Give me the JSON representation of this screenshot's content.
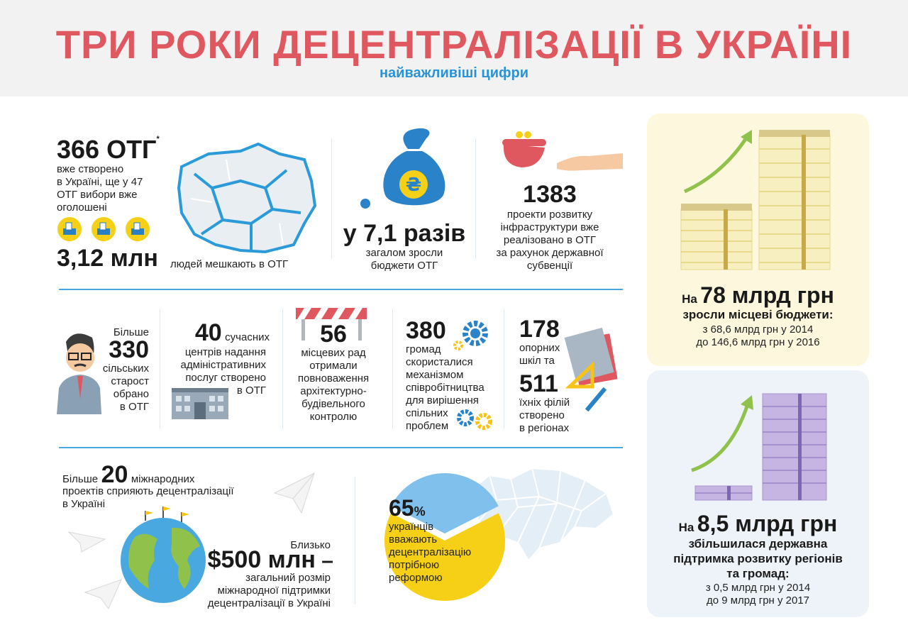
{
  "header": {
    "title": "ТРИ РОКИ ДЕЦЕНТРАЛІЗАЦІЇ В УКРАЇНІ",
    "subtitle": "найважливіші цифри"
  },
  "otg": {
    "number": "366 ОТГ",
    "star": "*",
    "text": [
      "вже створено",
      "в Україні, ще у 47",
      "ОТГ вибори вже",
      "оголошені"
    ],
    "people_number": "3,12 млн",
    "people_text": "людей мешкають в ОТГ"
  },
  "budgets": {
    "number": "у 7,1 разів",
    "text": [
      "загалом зросли",
      "бюджети ОТГ"
    ],
    "currency_symbol": "₴"
  },
  "projects": {
    "number": "1383",
    "text": [
      "проекти розвитку",
      "інфраструктури вже",
      "реалізовано в ОТГ",
      "за рахунок державної",
      "субвенції"
    ]
  },
  "starosty": {
    "prefix": "Більше",
    "number": "330",
    "text": [
      "сільських",
      "старост",
      "обрано",
      "в ОТГ"
    ]
  },
  "centers": {
    "number": "40",
    "first_word": "сучасних",
    "text": [
      "центрів надання",
      "адміністративних",
      "послуг створено",
      "в ОТГ"
    ]
  },
  "councils": {
    "number": "56",
    "text": [
      "місцевих рад",
      "отримали",
      "повноваження",
      "архітектурно-",
      "будівельного",
      "контролю"
    ]
  },
  "cooperation": {
    "number": "380",
    "text": [
      "громад",
      "скористалися",
      "механізмом",
      "співробітництва",
      "для вирішення",
      "спільних",
      "проблем"
    ]
  },
  "schools": {
    "number1": "178",
    "text1": [
      "опорних",
      "шкіл та"
    ],
    "number2": "511",
    "text2": [
      "їхніх філій",
      "створено",
      "в регіонах"
    ]
  },
  "international": {
    "prefix": "Більше",
    "number": "20",
    "suffix": "міжнародних",
    "text": [
      "проектів сприяють децентралізації",
      "в Україні"
    ]
  },
  "support": {
    "prefix": "Близько",
    "number": "$500 млн",
    "dash": " –",
    "text": [
      "загальний розмір",
      "міжнародної підтримки",
      "децентралізації в Україні"
    ]
  },
  "opinion": {
    "number": "65",
    "percent": "%",
    "text": [
      "українців",
      "вважають",
      "децентралізацію",
      "потрібною",
      "реформою"
    ]
  },
  "chart_data": {
    "type": "pie",
    "slices": [
      {
        "value": 65,
        "color": "#f6d016"
      },
      {
        "value": 35,
        "color": "#7fc0ec"
      }
    ]
  },
  "local_budgets": {
    "prefix": "На",
    "number": "78 млрд грн",
    "headline": "зросли місцеві бюджети:",
    "line1": "з 68,6 млрд грн у 2014",
    "line2": "до 146,6 млрд грн у 2016"
  },
  "state_support": {
    "prefix": "На",
    "number": "8,5 млрд грн",
    "headline": [
      "збільшилася державна",
      "підтримка розвитку регіонів",
      "та громад:"
    ],
    "line1": "з 0,5 млрд грн у 2014",
    "line2": "до 9 млрд грн у 2017"
  },
  "colors": {
    "title": "#e0585f",
    "subtitle": "#2a93d5",
    "divider": "#4aa8e0",
    "pie_yellow": "#f6d016",
    "pie_blue": "#7fc0ec",
    "panel_yellow": "#fdf8dd",
    "panel_blue": "#eef3fa",
    "arrow_green": "#8fc14b"
  }
}
